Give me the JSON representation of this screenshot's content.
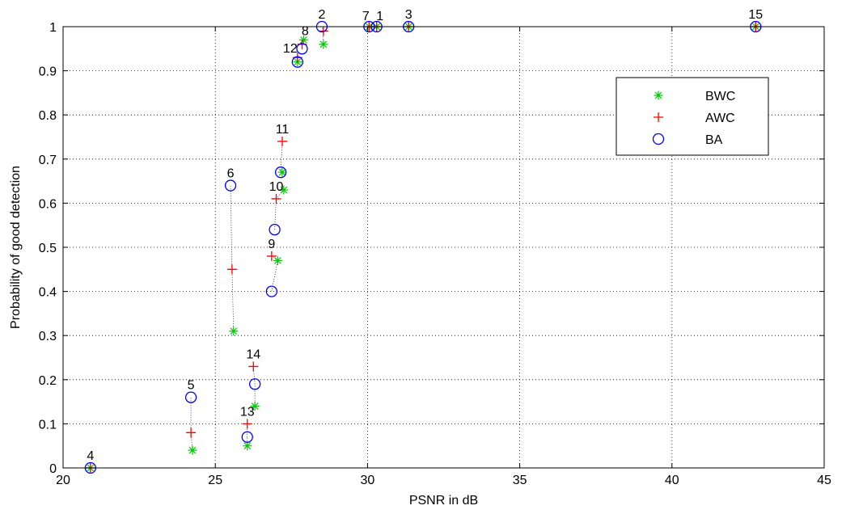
{
  "chart_data": {
    "type": "scatter",
    "title": "",
    "xlabel": "PSNR in dB",
    "ylabel": "Probability of good detection",
    "xlim": [
      20,
      45
    ],
    "ylim": [
      0,
      1
    ],
    "xticks": [
      20,
      25,
      30,
      35,
      40,
      45
    ],
    "yticks": [
      0,
      0.1,
      0.2,
      0.3,
      0.4,
      0.5,
      0.6,
      0.7,
      0.8,
      0.9,
      1
    ],
    "grid": true,
    "legend_position": "upper-right",
    "series": [
      {
        "name": "BWC",
        "marker": "asterisk",
        "color": "#00cc00",
        "points": [
          {
            "label": "1",
            "x": 30.3,
            "y": 1.0
          },
          {
            "label": "2",
            "x": 28.55,
            "y": 0.96
          },
          {
            "label": "3",
            "x": 31.35,
            "y": 1.0
          },
          {
            "label": "4",
            "x": 20.9,
            "y": 0.0
          },
          {
            "label": "5",
            "x": 24.25,
            "y": 0.04
          },
          {
            "label": "6",
            "x": 25.6,
            "y": 0.31
          },
          {
            "label": "7",
            "x": 30.05,
            "y": 1.0
          },
          {
            "label": "8",
            "x": 27.9,
            "y": 0.97
          },
          {
            "label": "9",
            "x": 27.05,
            "y": 0.47
          },
          {
            "label": "10",
            "x": 27.25,
            "y": 0.63
          },
          {
            "label": "11",
            "x": 27.2,
            "y": 0.67
          },
          {
            "label": "12",
            "x": 27.7,
            "y": 0.92
          },
          {
            "label": "13",
            "x": 26.05,
            "y": 0.05
          },
          {
            "label": "14",
            "x": 26.3,
            "y": 0.14
          },
          {
            "label": "15",
            "x": 42.75,
            "y": 1.0
          }
        ]
      },
      {
        "name": "AWC",
        "marker": "plus",
        "color": "#ff0000",
        "points": [
          {
            "label": "1",
            "x": 30.3,
            "y": 1.0
          },
          {
            "label": "2",
            "x": 28.55,
            "y": 0.99
          },
          {
            "label": "3",
            "x": 31.35,
            "y": 1.0
          },
          {
            "label": "4",
            "x": 20.9,
            "y": 0.0
          },
          {
            "label": "5",
            "x": 24.2,
            "y": 0.08
          },
          {
            "label": "6",
            "x": 25.55,
            "y": 0.45
          },
          {
            "label": "7",
            "x": 30.05,
            "y": 1.0
          },
          {
            "label": "8",
            "x": 27.85,
            "y": 0.96
          },
          {
            "label": "9",
            "x": 26.85,
            "y": 0.48
          },
          {
            "label": "10",
            "x": 27.0,
            "y": 0.61
          },
          {
            "label": "11",
            "x": 27.2,
            "y": 0.74
          },
          {
            "label": "12",
            "x": 27.7,
            "y": 0.93
          },
          {
            "label": "13",
            "x": 26.05,
            "y": 0.1
          },
          {
            "label": "14",
            "x": 26.25,
            "y": 0.23
          },
          {
            "label": "15",
            "x": 42.75,
            "y": 1.0
          }
        ]
      },
      {
        "name": "BA",
        "marker": "circle",
        "color": "#0000ff",
        "points": [
          {
            "label": "1",
            "x": 30.3,
            "y": 1.0
          },
          {
            "label": "2",
            "x": 28.5,
            "y": 1.0
          },
          {
            "label": "3",
            "x": 31.35,
            "y": 1.0
          },
          {
            "label": "4",
            "x": 20.9,
            "y": 0.0
          },
          {
            "label": "5",
            "x": 24.2,
            "y": 0.16
          },
          {
            "label": "6",
            "x": 25.5,
            "y": 0.64
          },
          {
            "label": "7",
            "x": 30.05,
            "y": 1.0
          },
          {
            "label": "8",
            "x": 27.85,
            "y": 0.95
          },
          {
            "label": "9",
            "x": 26.85,
            "y": 0.4
          },
          {
            "label": "10",
            "x": 26.95,
            "y": 0.54
          },
          {
            "label": "11",
            "x": 27.15,
            "y": 0.67
          },
          {
            "label": "12",
            "x": 27.7,
            "y": 0.92
          },
          {
            "label": "13",
            "x": 26.05,
            "y": 0.07
          },
          {
            "label": "14",
            "x": 26.3,
            "y": 0.19
          },
          {
            "label": "15",
            "x": 42.75,
            "y": 1.0
          }
        ]
      }
    ],
    "annotations": [
      {
        "text": "1",
        "x": 30.3,
        "y": 1.0
      },
      {
        "text": "2",
        "x": 28.5,
        "y": 1.0
      },
      {
        "text": "3",
        "x": 31.35,
        "y": 1.0
      },
      {
        "text": "4",
        "x": 20.9,
        "y": 0.0
      },
      {
        "text": "5",
        "x": 24.2,
        "y": 0.16
      },
      {
        "text": "6",
        "x": 25.5,
        "y": 0.64
      },
      {
        "text": "7",
        "x": 30.05,
        "y": 1.0
      },
      {
        "text": "8",
        "x": 27.9,
        "y": 0.97
      },
      {
        "text": "9",
        "x": 26.85,
        "y": 0.48
      },
      {
        "text": "10",
        "x": 27.0,
        "y": 0.61
      },
      {
        "text": "11",
        "x": 27.2,
        "y": 0.74
      },
      {
        "text": "12",
        "x": 27.7,
        "y": 0.93
      },
      {
        "text": "13",
        "x": 26.05,
        "y": 0.1
      },
      {
        "text": "14",
        "x": 26.25,
        "y": 0.23
      },
      {
        "text": "15",
        "x": 42.75,
        "y": 1.0
      }
    ]
  }
}
